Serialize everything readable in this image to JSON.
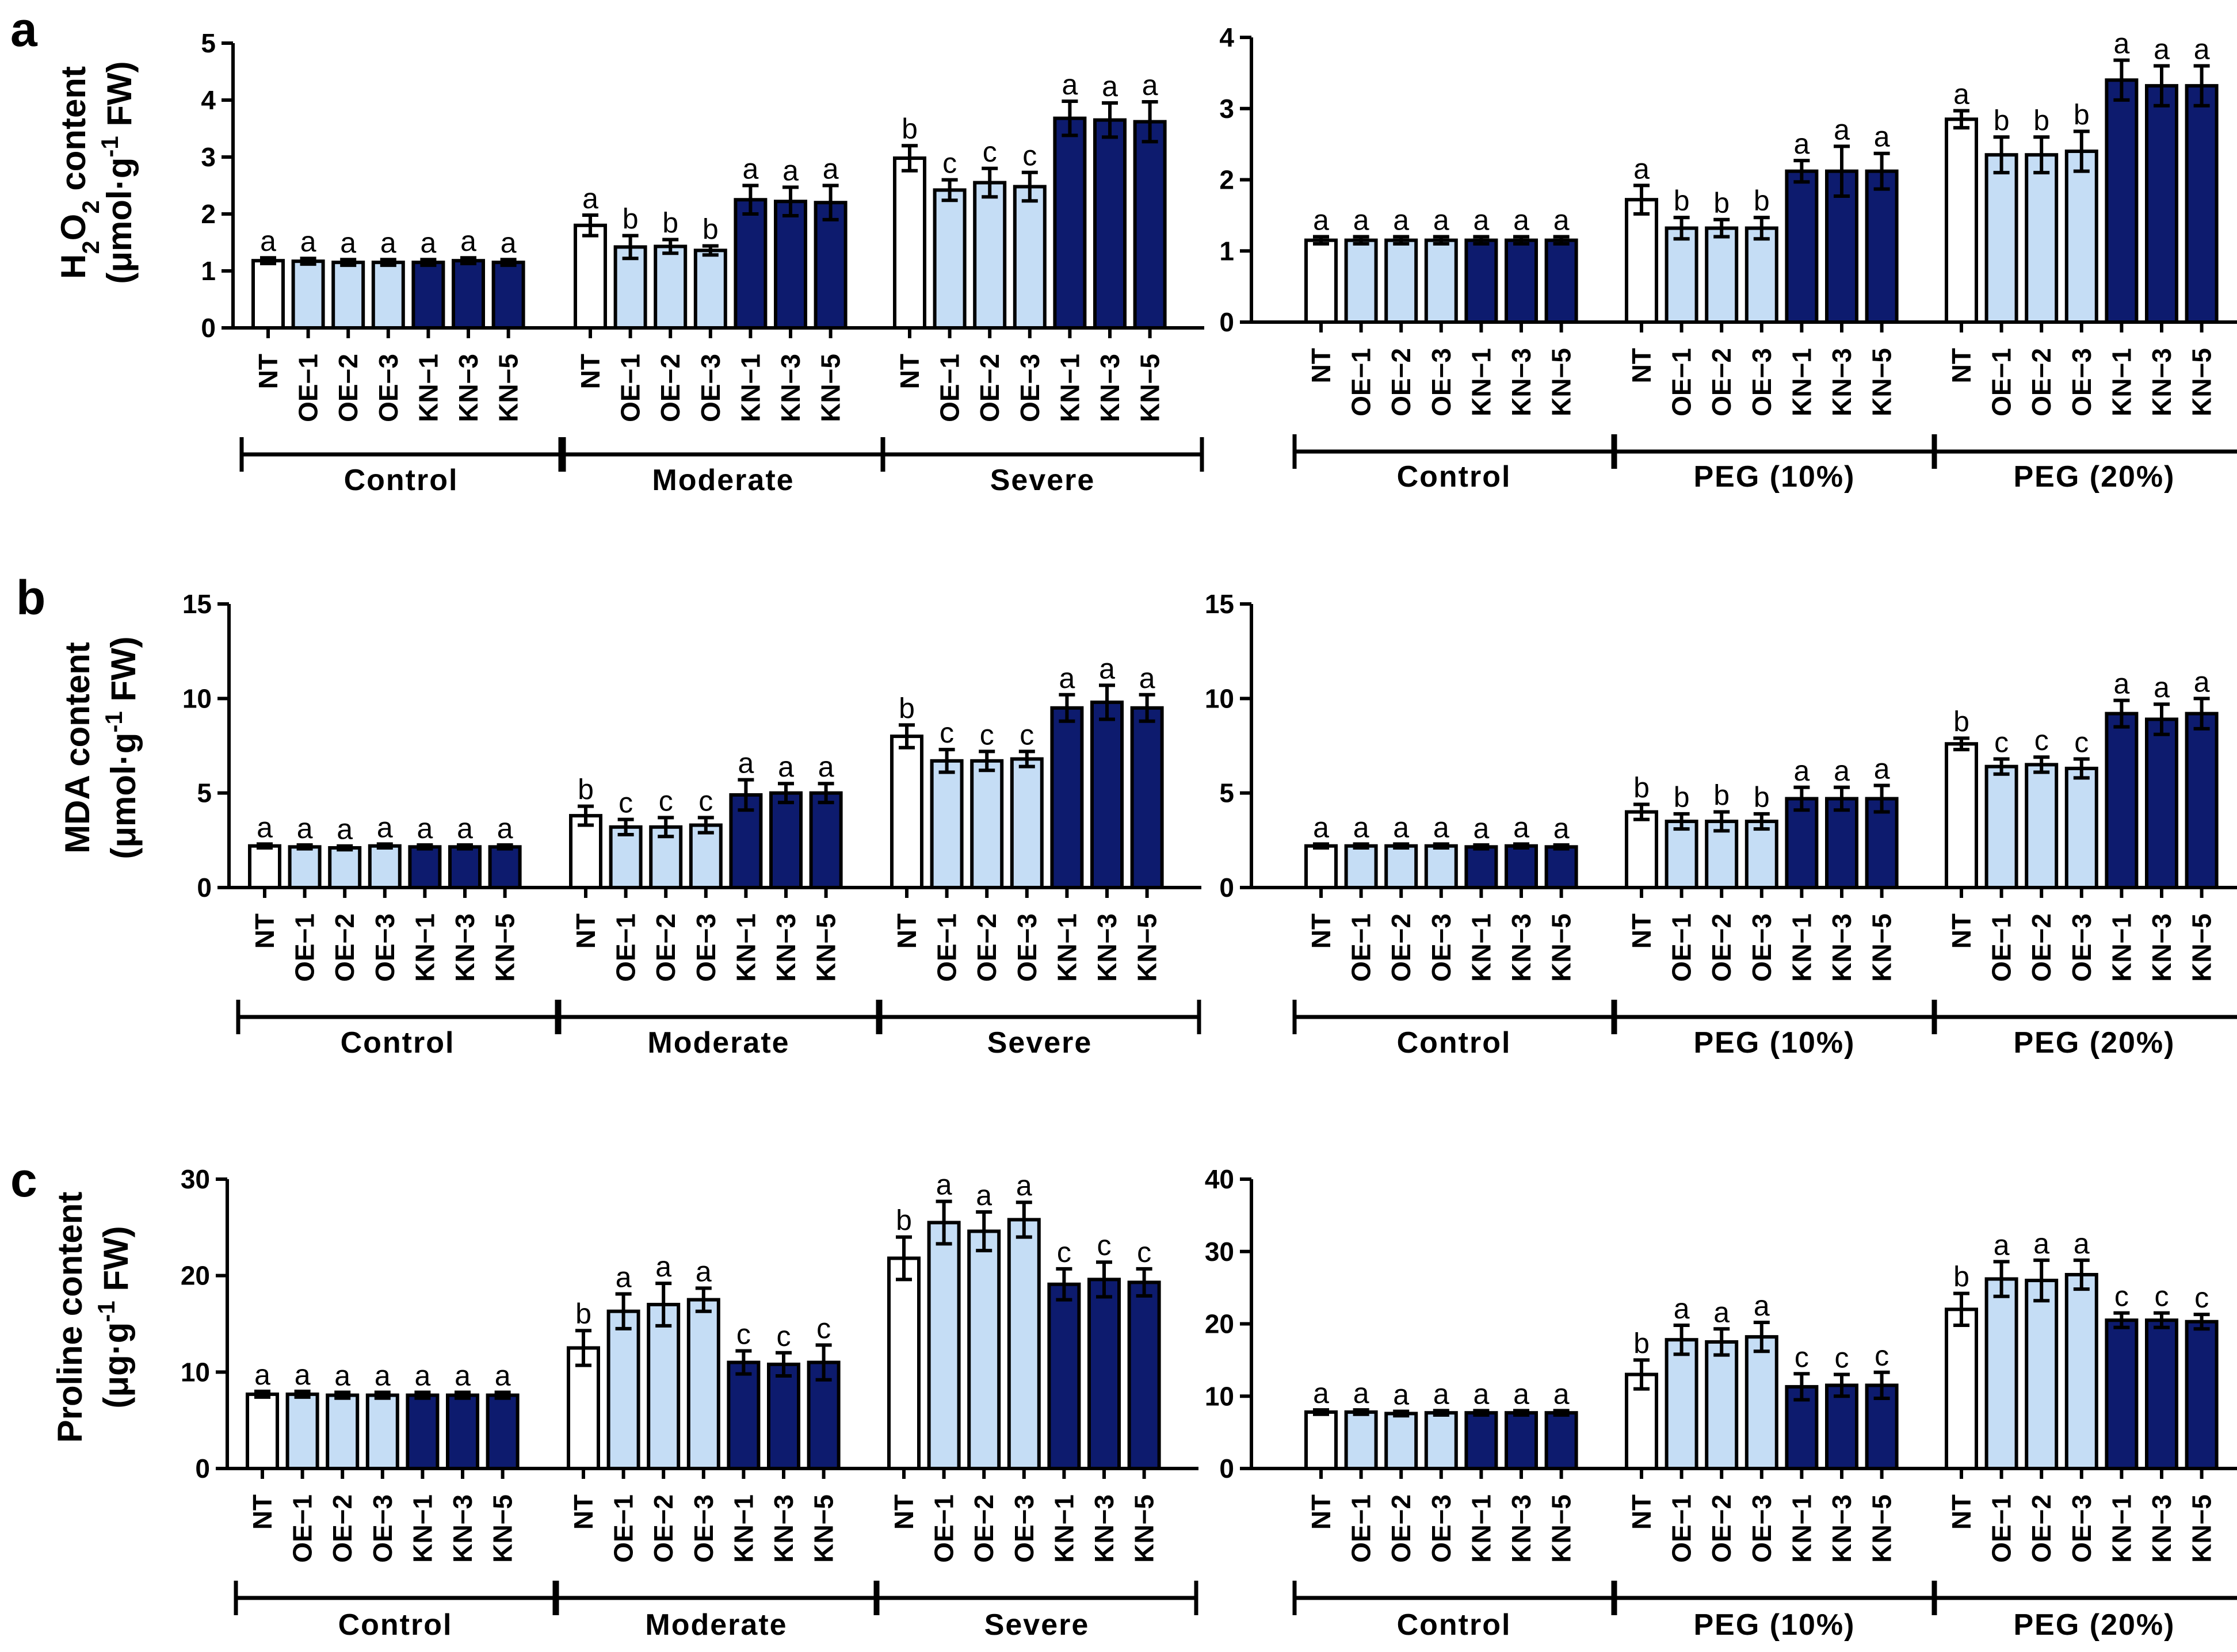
{
  "figure": {
    "panel_labels": [
      "a",
      "b",
      "c"
    ],
    "row_ylabels": [
      {
        "line1": "H",
        "line1_sub": "2",
        "line1_mid": "O",
        "line1_sub2": "2",
        "line1_end": " content",
        "line2": "(μmol·g",
        "line2_sup": "-1",
        "line2_end": " FW)"
      },
      {
        "line1": "MDA content",
        "line1_sub": "",
        "line1_mid": "",
        "line1_sub2": "",
        "line1_end": "",
        "line2": "(μmol·g",
        "line2_sup": "-1",
        "line2_end": " FW)"
      },
      {
        "line1": "Proline content",
        "line1_sub": "",
        "line1_mid": "",
        "line1_sub2": "",
        "line1_end": "",
        "line2": "(μg·g",
        "line2_sup": "-1",
        "line2_end": " FW)"
      }
    ],
    "colors": {
      "NT": "#ffffff",
      "OE": "#c5ddf5",
      "KN": "#0d1b6e",
      "stroke": "#000000"
    }
  },
  "chart_data": [
    {
      "id": "a-left",
      "type": "bar",
      "panel": "a",
      "ylabel": "H2O2 content (μmol·g-1 FW)",
      "ylim": [
        0,
        5
      ],
      "yticks": [
        0,
        1,
        2,
        3,
        4,
        5
      ],
      "categories": [
        "NT",
        "OE−1",
        "OE−2",
        "OE−3",
        "KN−1",
        "KN−3",
        "KN−5"
      ],
      "bar_types": [
        "NT",
        "OE",
        "OE",
        "OE",
        "KN",
        "KN",
        "KN"
      ],
      "groups": [
        {
          "name": "Control",
          "values": [
            1.18,
            1.17,
            1.15,
            1.15,
            1.15,
            1.18,
            1.15
          ],
          "errors": [
            0.05,
            0.05,
            0.05,
            0.05,
            0.05,
            0.05,
            0.05
          ],
          "letters": [
            "a",
            "a",
            "a",
            "a",
            "a",
            "a",
            "a"
          ]
        },
        {
          "name": "Moderate",
          "values": [
            1.8,
            1.42,
            1.43,
            1.36,
            2.25,
            2.22,
            2.2
          ],
          "errors": [
            0.18,
            0.2,
            0.12,
            0.08,
            0.25,
            0.25,
            0.3
          ],
          "letters": [
            "a",
            "b",
            "b",
            "b",
            "a",
            "a",
            "a"
          ]
        },
        {
          "name": "Severe",
          "values": [
            2.98,
            2.42,
            2.55,
            2.48,
            3.68,
            3.65,
            3.62
          ],
          "errors": [
            0.22,
            0.18,
            0.25,
            0.25,
            0.3,
            0.3,
            0.35
          ],
          "letters": [
            "b",
            "c",
            "c",
            "c",
            "a",
            "a",
            "a"
          ]
        }
      ]
    },
    {
      "id": "a-right",
      "type": "bar",
      "panel": "a",
      "ylabel": "H2O2 content (μmol·g-1 FW)",
      "ylim": [
        0,
        4
      ],
      "yticks": [
        0,
        1,
        2,
        3,
        4
      ],
      "categories": [
        "NT",
        "OE−1",
        "OE−2",
        "OE−3",
        "KN−1",
        "KN−3",
        "KN−5"
      ],
      "bar_types": [
        "NT",
        "OE",
        "OE",
        "OE",
        "KN",
        "KN",
        "KN"
      ],
      "groups": [
        {
          "name": "Control",
          "values": [
            1.15,
            1.15,
            1.15,
            1.15,
            1.15,
            1.15,
            1.15
          ],
          "errors": [
            0.05,
            0.05,
            0.05,
            0.05,
            0.05,
            0.05,
            0.05
          ],
          "letters": [
            "a",
            "a",
            "a",
            "a",
            "a",
            "a",
            "a"
          ]
        },
        {
          "name": "PEG (10%)",
          "values": [
            1.72,
            1.32,
            1.32,
            1.32,
            2.12,
            2.12,
            2.12
          ],
          "errors": [
            0.2,
            0.15,
            0.12,
            0.15,
            0.15,
            0.35,
            0.25
          ],
          "letters": [
            "a",
            "b",
            "b",
            "b",
            "a",
            "a",
            "a"
          ]
        },
        {
          "name": "PEG (20%)",
          "values": [
            2.85,
            2.35,
            2.35,
            2.4,
            3.4,
            3.32,
            3.32
          ],
          "errors": [
            0.12,
            0.25,
            0.25,
            0.28,
            0.28,
            0.28,
            0.28
          ],
          "letters": [
            "a",
            "b",
            "b",
            "b",
            "a",
            "a",
            "a"
          ]
        }
      ]
    },
    {
      "id": "b-left",
      "type": "bar",
      "panel": "b",
      "ylabel": "MDA content (μmol·g-1 FW)",
      "ylim": [
        0,
        15
      ],
      "yticks": [
        0,
        5,
        10,
        15
      ],
      "categories": [
        "NT",
        "OE−1",
        "OE−2",
        "OE−3",
        "KN−1",
        "KN−3",
        "KN−5"
      ],
      "bar_types": [
        "NT",
        "OE",
        "OE",
        "OE",
        "KN",
        "KN",
        "KN"
      ],
      "groups": [
        {
          "name": "Control",
          "values": [
            2.2,
            2.15,
            2.1,
            2.2,
            2.15,
            2.15,
            2.15
          ],
          "errors": [
            0.1,
            0.1,
            0.1,
            0.1,
            0.1,
            0.1,
            0.1
          ],
          "letters": [
            "a",
            "a",
            "a",
            "a",
            "a",
            "a",
            "a"
          ]
        },
        {
          "name": "Moderate",
          "values": [
            3.8,
            3.2,
            3.2,
            3.3,
            4.9,
            5.0,
            5.0
          ],
          "errors": [
            0.5,
            0.4,
            0.5,
            0.4,
            0.8,
            0.5,
            0.5
          ],
          "letters": [
            "b",
            "c",
            "c",
            "c",
            "a",
            "a",
            "a"
          ]
        },
        {
          "name": "Severe",
          "values": [
            8.0,
            6.7,
            6.7,
            6.8,
            9.5,
            9.8,
            9.5
          ],
          "errors": [
            0.6,
            0.6,
            0.5,
            0.4,
            0.7,
            0.9,
            0.7
          ],
          "letters": [
            "b",
            "c",
            "c",
            "c",
            "a",
            "a",
            "a"
          ]
        }
      ]
    },
    {
      "id": "b-right",
      "type": "bar",
      "panel": "b",
      "ylabel": "MDA content (μmol·g-1 FW)",
      "ylim": [
        0,
        15
      ],
      "yticks": [
        0,
        5,
        10,
        15
      ],
      "categories": [
        "NT",
        "OE−1",
        "OE−2",
        "OE−3",
        "KN−1",
        "KN−3",
        "KN−5"
      ],
      "bar_types": [
        "NT",
        "OE",
        "OE",
        "OE",
        "KN",
        "KN",
        "KN"
      ],
      "groups": [
        {
          "name": "Control",
          "values": [
            2.2,
            2.2,
            2.2,
            2.2,
            2.15,
            2.2,
            2.15
          ],
          "errors": [
            0.1,
            0.1,
            0.1,
            0.1,
            0.1,
            0.1,
            0.1
          ],
          "letters": [
            "a",
            "a",
            "a",
            "a",
            "a",
            "a",
            "a"
          ]
        },
        {
          "name": "PEG (10%)",
          "values": [
            4.0,
            3.5,
            3.5,
            3.5,
            4.7,
            4.7,
            4.7
          ],
          "errors": [
            0.4,
            0.4,
            0.5,
            0.4,
            0.6,
            0.6,
            0.7
          ],
          "letters": [
            "b",
            "b",
            "b",
            "b",
            "a",
            "a",
            "a"
          ]
        },
        {
          "name": "PEG (20%)",
          "values": [
            7.6,
            6.4,
            6.5,
            6.3,
            9.2,
            8.9,
            9.2
          ],
          "errors": [
            0.3,
            0.4,
            0.4,
            0.5,
            0.7,
            0.8,
            0.8
          ],
          "letters": [
            "b",
            "c",
            "c",
            "c",
            "a",
            "a",
            "a"
          ]
        }
      ]
    },
    {
      "id": "c-left",
      "type": "bar",
      "panel": "c",
      "ylabel": "Proline content (μg·g-1 FW)",
      "ylim": [
        0,
        30
      ],
      "yticks": [
        0,
        10,
        20,
        30
      ],
      "categories": [
        "NT",
        "OE−1",
        "OE−2",
        "OE−3",
        "KN−1",
        "KN−3",
        "KN−5"
      ],
      "bar_types": [
        "NT",
        "OE",
        "OE",
        "OE",
        "KN",
        "KN",
        "KN"
      ],
      "groups": [
        {
          "name": "Control",
          "values": [
            7.7,
            7.7,
            7.6,
            7.6,
            7.6,
            7.6,
            7.6
          ],
          "errors": [
            0.3,
            0.3,
            0.3,
            0.3,
            0.3,
            0.3,
            0.3
          ],
          "letters": [
            "a",
            "a",
            "a",
            "a",
            "a",
            "a",
            "a"
          ]
        },
        {
          "name": "Moderate",
          "values": [
            12.5,
            16.3,
            17.0,
            17.5,
            11.0,
            10.8,
            11.0
          ],
          "errors": [
            1.8,
            1.8,
            2.2,
            1.2,
            1.2,
            1.2,
            1.8
          ],
          "letters": [
            "b",
            "a",
            "a",
            "a",
            "c",
            "c",
            "c"
          ]
        },
        {
          "name": "Severe",
          "values": [
            21.8,
            25.5,
            24.6,
            25.8,
            19.1,
            19.6,
            19.3
          ],
          "errors": [
            2.2,
            2.2,
            2.0,
            1.8,
            1.6,
            1.8,
            1.4
          ],
          "letters": [
            "b",
            "a",
            "a",
            "a",
            "c",
            "c",
            "c"
          ]
        }
      ]
    },
    {
      "id": "c-right",
      "type": "bar",
      "panel": "c",
      "ylabel": "Proline content (μg·g-1 FW)",
      "ylim": [
        0,
        40
      ],
      "yticks": [
        0,
        10,
        20,
        30,
        40
      ],
      "categories": [
        "NT",
        "OE−1",
        "OE−2",
        "OE−3",
        "KN−1",
        "KN−3",
        "KN−5"
      ],
      "bar_types": [
        "NT",
        "OE",
        "OE",
        "OE",
        "KN",
        "KN",
        "KN"
      ],
      "groups": [
        {
          "name": "Control",
          "values": [
            7.8,
            7.8,
            7.6,
            7.7,
            7.7,
            7.7,
            7.7
          ],
          "errors": [
            0.3,
            0.3,
            0.3,
            0.3,
            0.3,
            0.3,
            0.3
          ],
          "letters": [
            "a",
            "a",
            "a",
            "a",
            "a",
            "a",
            "a"
          ]
        },
        {
          "name": "PEG (10%)",
          "values": [
            13.0,
            17.8,
            17.5,
            18.2,
            11.3,
            11.5,
            11.5
          ],
          "errors": [
            2.0,
            2.0,
            1.8,
            2.0,
            1.8,
            1.5,
            1.8
          ],
          "letters": [
            "b",
            "a",
            "a",
            "a",
            "c",
            "c",
            "c"
          ]
        },
        {
          "name": "PEG (20%)",
          "values": [
            22.0,
            26.2,
            26.0,
            26.8,
            20.5,
            20.5,
            20.3
          ],
          "errors": [
            2.2,
            2.4,
            2.8,
            2.0,
            1.0,
            1.0,
            1.0
          ],
          "letters": [
            "b",
            "a",
            "a",
            "a",
            "c",
            "c",
            "c"
          ]
        }
      ]
    }
  ]
}
